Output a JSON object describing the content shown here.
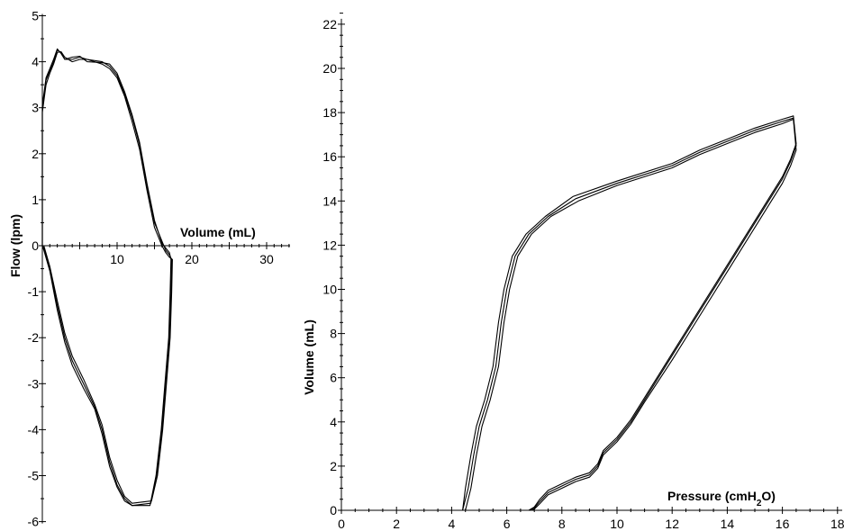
{
  "chart_data": [
    {
      "type": "line",
      "id": "flow-volume",
      "xlabel": "Volume (mL)",
      "ylabel": "Flow (lpm)",
      "xlim": [
        0,
        35
      ],
      "ylim": [
        -6,
        5
      ],
      "x_ticks": [
        10,
        20,
        30
      ],
      "y_ticks": [
        -6,
        -5,
        -4,
        -3,
        -2,
        -1,
        0,
        1,
        2,
        3,
        4,
        5
      ],
      "series": [
        {
          "values": [
            [
              0,
              3.0
            ],
            [
              0.5,
              3.6
            ],
            [
              1,
              3.8
            ],
            [
              1.5,
              4.0
            ],
            [
              2,
              4.25
            ],
            [
              2.5,
              4.2
            ],
            [
              3,
              4.05
            ],
            [
              4,
              4.05
            ],
            [
              5,
              4.1
            ],
            [
              6,
              4.05
            ],
            [
              8,
              4.0
            ],
            [
              9,
              3.9
            ],
            [
              10,
              3.7
            ],
            [
              11,
              3.3
            ],
            [
              12,
              2.8
            ],
            [
              13,
              2.2
            ],
            [
              14,
              1.3
            ],
            [
              15,
              0.5
            ],
            [
              16,
              0.1
            ],
            [
              16.5,
              -0.1
            ],
            [
              17,
              -0.2
            ],
            [
              17.3,
              -0.3
            ],
            [
              17.2,
              -1.0
            ],
            [
              17.0,
              -2.0
            ],
            [
              16.5,
              -3.0
            ],
            [
              16.0,
              -4.0
            ],
            [
              15.3,
              -5.0
            ],
            [
              14.5,
              -5.6
            ],
            [
              12,
              -5.65
            ],
            [
              11,
              -5.5
            ],
            [
              10,
              -5.2
            ],
            [
              9,
              -4.7
            ],
            [
              8,
              -4.0
            ],
            [
              7,
              -3.5
            ],
            [
              5.5,
              -3.0
            ],
            [
              4,
              -2.5
            ],
            [
              3,
              -2.0
            ],
            [
              2,
              -1.3
            ],
            [
              1,
              -0.5
            ],
            [
              0.2,
              -0.05
            ],
            [
              0,
              0
            ],
            [
              0,
              3.0
            ]
          ]
        },
        {
          "values": [
            [
              0,
              2.9
            ],
            [
              0.5,
              3.5
            ],
            [
              1,
              3.75
            ],
            [
              1.5,
              3.95
            ],
            [
              2,
              4.2
            ],
            [
              2.5,
              4.22
            ],
            [
              3,
              4.1
            ],
            [
              4,
              4.0
            ],
            [
              5,
              4.05
            ],
            [
              6,
              4.05
            ],
            [
              8,
              3.95
            ],
            [
              9,
              3.85
            ],
            [
              10,
              3.65
            ],
            [
              11,
              3.25
            ],
            [
              12,
              2.7
            ],
            [
              13,
              2.1
            ],
            [
              14,
              1.2
            ],
            [
              15,
              0.4
            ],
            [
              16,
              0.0
            ],
            [
              16.5,
              -0.15
            ],
            [
              17,
              -0.25
            ],
            [
              17.4,
              -0.3
            ],
            [
              17.3,
              -1.0
            ],
            [
              17.1,
              -2.0
            ],
            [
              16.6,
              -3.0
            ],
            [
              16.1,
              -4.0
            ],
            [
              15.4,
              -5.0
            ],
            [
              14.6,
              -5.55
            ],
            [
              12,
              -5.6
            ],
            [
              11,
              -5.45
            ],
            [
              10,
              -5.1
            ],
            [
              9,
              -4.6
            ],
            [
              8,
              -3.9
            ],
            [
              7,
              -3.45
            ],
            [
              5.5,
              -2.9
            ],
            [
              4,
              -2.4
            ],
            [
              3,
              -1.9
            ],
            [
              2,
              -1.2
            ],
            [
              1,
              -0.45
            ],
            [
              0.2,
              0.0
            ],
            [
              0,
              0
            ],
            [
              0,
              2.9
            ]
          ]
        },
        {
          "values": [
            [
              0,
              3.05
            ],
            [
              0.5,
              3.65
            ],
            [
              1,
              3.85
            ],
            [
              1.5,
              4.05
            ],
            [
              2,
              4.28
            ],
            [
              2.5,
              4.18
            ],
            [
              3,
              4.05
            ],
            [
              4,
              4.1
            ],
            [
              5,
              4.12
            ],
            [
              6,
              4.0
            ],
            [
              8,
              3.98
            ],
            [
              9,
              3.95
            ],
            [
              10,
              3.75
            ],
            [
              11,
              3.35
            ],
            [
              12,
              2.85
            ],
            [
              13,
              2.25
            ],
            [
              14,
              1.35
            ],
            [
              15,
              0.55
            ],
            [
              16,
              0.05
            ],
            [
              16.5,
              -0.05
            ],
            [
              17,
              -0.15
            ],
            [
              17.2,
              -0.3
            ],
            [
              17.1,
              -1.0
            ],
            [
              16.9,
              -2.0
            ],
            [
              16.4,
              -3.0
            ],
            [
              15.9,
              -4.0
            ],
            [
              15.2,
              -5.0
            ],
            [
              14.4,
              -5.65
            ],
            [
              12,
              -5.65
            ],
            [
              11,
              -5.55
            ],
            [
              10,
              -5.25
            ],
            [
              9,
              -4.8
            ],
            [
              8,
              -4.1
            ],
            [
              7,
              -3.55
            ],
            [
              5.5,
              -3.1
            ],
            [
              4,
              -2.6
            ],
            [
              3,
              -2.1
            ],
            [
              2,
              -1.4
            ],
            [
              1,
              -0.55
            ],
            [
              0.2,
              -0.1
            ],
            [
              0,
              0
            ],
            [
              0,
              3.05
            ]
          ]
        }
      ]
    },
    {
      "type": "line",
      "id": "pressure-volume",
      "xlabel_parts": [
        "Pressure (cmH",
        "2",
        "O)"
      ],
      "ylabel": "Volume (mL)",
      "xlim": [
        0,
        18
      ],
      "ylim": [
        0,
        22
      ],
      "x_ticks": [
        0,
        2,
        4,
        6,
        8,
        10,
        12,
        14,
        16,
        18
      ],
      "y_ticks": [
        0,
        2,
        4,
        6,
        8,
        10,
        12,
        14,
        16,
        18,
        20,
        22
      ],
      "series": [
        {
          "values": [
            [
              4.4,
              0
            ],
            [
              4.6,
              1.0
            ],
            [
              4.8,
              2.5
            ],
            [
              5.0,
              3.8
            ],
            [
              5.3,
              5.0
            ],
            [
              5.6,
              6.5
            ],
            [
              5.8,
              8.5
            ],
            [
              6.0,
              10.0
            ],
            [
              6.3,
              11.5
            ],
            [
              6.8,
              12.5
            ],
            [
              7.5,
              13.3
            ],
            [
              8.5,
              14.1
            ],
            [
              10,
              14.8
            ],
            [
              12,
              15.6
            ],
            [
              13,
              16.2
            ],
            [
              14,
              16.7
            ],
            [
              15,
              17.2
            ],
            [
              16,
              17.6
            ],
            [
              16.4,
              17.75
            ],
            [
              16.5,
              16.5
            ],
            [
              16.3,
              15.8
            ],
            [
              16,
              15.0
            ],
            [
              15.5,
              14.0
            ],
            [
              15,
              13.0
            ],
            [
              14,
              11.0
            ],
            [
              13,
              9.0
            ],
            [
              12,
              7.0
            ],
            [
              11,
              5.0
            ],
            [
              10.5,
              4.0
            ],
            [
              10,
              3.2
            ],
            [
              9.5,
              2.6
            ],
            [
              9.3,
              2.0
            ],
            [
              9.0,
              1.6
            ],
            [
              8.5,
              1.4
            ],
            [
              8.0,
              1.1
            ],
            [
              7.5,
              0.8
            ],
            [
              7.2,
              0.4
            ],
            [
              7.0,
              0.1
            ],
            [
              6.8,
              0
            ],
            [
              4.4,
              0
            ]
          ]
        },
        {
          "values": [
            [
              4.5,
              0
            ],
            [
              4.7,
              1.0
            ],
            [
              4.9,
              2.5
            ],
            [
              5.1,
              3.8
            ],
            [
              5.4,
              5.0
            ],
            [
              5.7,
              6.5
            ],
            [
              5.9,
              8.5
            ],
            [
              6.1,
              10.0
            ],
            [
              6.4,
              11.5
            ],
            [
              6.9,
              12.5
            ],
            [
              7.6,
              13.3
            ],
            [
              8.6,
              14.0
            ],
            [
              10,
              14.7
            ],
            [
              12,
              15.5
            ],
            [
              13,
              16.1
            ],
            [
              14,
              16.6
            ],
            [
              15,
              17.1
            ],
            [
              16,
              17.5
            ],
            [
              16.4,
              17.7
            ],
            [
              16.5,
              16.3
            ],
            [
              16.3,
              15.6
            ],
            [
              16,
              14.8
            ],
            [
              15.5,
              13.8
            ],
            [
              15,
              12.8
            ],
            [
              14,
              10.8
            ],
            [
              13,
              8.8
            ],
            [
              12,
              6.8
            ],
            [
              11,
              4.9
            ],
            [
              10.5,
              3.9
            ],
            [
              10,
              3.1
            ],
            [
              9.5,
              2.5
            ],
            [
              9.3,
              1.9
            ],
            [
              9.0,
              1.5
            ],
            [
              8.5,
              1.3
            ],
            [
              8.0,
              1.0
            ],
            [
              7.5,
              0.7
            ],
            [
              7.2,
              0.3
            ],
            [
              7.0,
              0.05
            ],
            [
              6.9,
              0
            ],
            [
              4.5,
              0
            ]
          ]
        },
        {
          "values": [
            [
              4.4,
              0
            ],
            [
              4.5,
              1.0
            ],
            [
              4.7,
              2.5
            ],
            [
              4.9,
              3.8
            ],
            [
              5.2,
              5.0
            ],
            [
              5.5,
              6.5
            ],
            [
              5.7,
              8.5
            ],
            [
              5.9,
              10.0
            ],
            [
              6.2,
              11.5
            ],
            [
              6.7,
              12.5
            ],
            [
              7.4,
              13.3
            ],
            [
              8.4,
              14.2
            ],
            [
              10,
              14.9
            ],
            [
              12,
              15.7
            ],
            [
              13,
              16.3
            ],
            [
              14,
              16.8
            ],
            [
              15,
              17.3
            ],
            [
              16,
              17.7
            ],
            [
              16.4,
              17.85
            ],
            [
              16.5,
              16.6
            ],
            [
              16.3,
              15.9
            ],
            [
              16,
              15.1
            ],
            [
              15.5,
              14.1
            ],
            [
              15,
              13.1
            ],
            [
              14,
              11.1
            ],
            [
              13,
              9.1
            ],
            [
              12,
              7.1
            ],
            [
              11,
              5.1
            ],
            [
              10.5,
              4.1
            ],
            [
              10,
              3.3
            ],
            [
              9.5,
              2.7
            ],
            [
              9.3,
              2.1
            ],
            [
              9.0,
              1.7
            ],
            [
              8.5,
              1.5
            ],
            [
              8.0,
              1.2
            ],
            [
              7.5,
              0.9
            ],
            [
              7.2,
              0.5
            ],
            [
              7.0,
              0.15
            ],
            [
              6.8,
              0
            ],
            [
              4.4,
              0
            ]
          ]
        }
      ]
    }
  ]
}
